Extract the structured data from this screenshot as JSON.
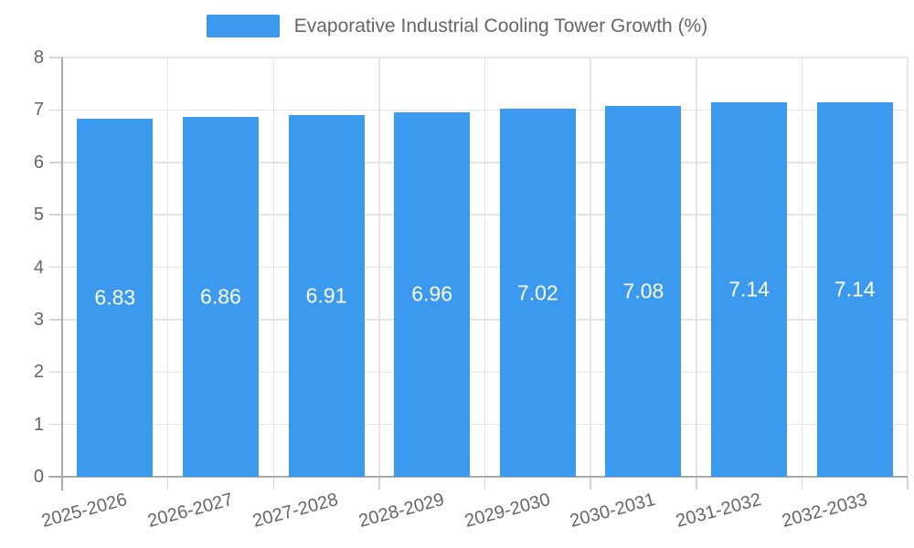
{
  "chart_data": {
    "type": "bar",
    "title": "Evaporative Industrial Cooling Tower Growth (%)",
    "legend_position": "top",
    "categories": [
      "2025-2026",
      "2026-2027",
      "2027-2028",
      "2028-2029",
      "2029-2030",
      "2030-2031",
      "2031-2032",
      "2032-2033"
    ],
    "series": [
      {
        "name": "Evaporative Industrial Cooling Tower Growth (%)",
        "values": [
          6.83,
          6.86,
          6.91,
          6.96,
          7.02,
          7.08,
          7.14,
          7.14
        ]
      }
    ],
    "bar_value_labels": [
      "6.83",
      "6.86",
      "6.91",
      "6.96",
      "7.02",
      "7.08",
      "7.14",
      "7.14"
    ],
    "xlabel": "",
    "ylabel": "",
    "ylim": [
      0,
      8
    ],
    "yticks": [
      0,
      1,
      2,
      3,
      4,
      5,
      6,
      7,
      8
    ],
    "ytick_labels": [
      "0",
      "1",
      "2",
      "3",
      "4",
      "5",
      "6",
      "7",
      "8"
    ],
    "grid": true,
    "colors": {
      "bar": "#3B99EE",
      "bar_label": "#FFFFFF",
      "grid": "#E5E5E5",
      "axis": "#ABABAB",
      "tick": "#D4D4D4",
      "text": "#666666",
      "background": "#FFFFFF"
    }
  }
}
